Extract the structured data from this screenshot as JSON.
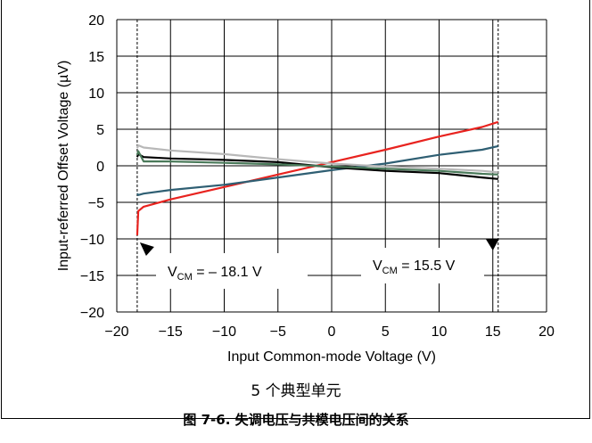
{
  "figure": {
    "note": "5 个典型单元",
    "caption": "图 7-6. 失调电压与共模电压间的关系"
  },
  "chart_data": {
    "type": "line",
    "xlabel": "Input Common-mode Voltage (V)",
    "ylabel": "Input-referred Offset Voltage (µV)",
    "xlim": [
      -20,
      20
    ],
    "ylim": [
      -20,
      20
    ],
    "xticks": [
      -20,
      -15,
      -10,
      -5,
      0,
      5,
      10,
      15,
      20
    ],
    "yticks": [
      20,
      15,
      10,
      5,
      0,
      -5,
      -10,
      -15,
      -20
    ],
    "xtick_labels": [
      "−20",
      "−15",
      "−10",
      "−5",
      "0",
      "5",
      "10",
      "15",
      "20"
    ],
    "ytick_labels": [
      "20",
      "15",
      "10",
      "5",
      "0",
      "−5",
      "−10",
      "−15",
      "−20"
    ],
    "grid": true,
    "series": [
      {
        "color": "#e8231f",
        "x": [
          -18.1,
          -18,
          -17.5,
          -15,
          -10,
          -5,
          0,
          5,
          10,
          14,
          15.5
        ],
        "y": [
          -9.5,
          -6.2,
          -5.6,
          -4.6,
          -2.9,
          -1.2,
          0.5,
          2.2,
          4.0,
          5.3,
          6.0
        ]
      },
      {
        "color": "#2f5f73",
        "x": [
          -18.1,
          -18,
          -17.5,
          -15,
          -10,
          -5,
          0,
          5,
          10,
          14,
          15.5
        ],
        "y": [
          -3.8,
          -4.0,
          -3.8,
          -3.3,
          -2.6,
          -1.6,
          -0.6,
          0.3,
          1.5,
          2.2,
          2.7
        ]
      },
      {
        "color": "#000000",
        "x": [
          -18.1,
          -18,
          -17.5,
          -15,
          -10,
          -5,
          0,
          5,
          10,
          14,
          15.5
        ],
        "y": [
          1.2,
          1.6,
          1.2,
          1.0,
          0.8,
          0.5,
          -0.2,
          -0.7,
          -1.0,
          -1.6,
          -1.8
        ]
      },
      {
        "color": "#b8b8b8",
        "x": [
          -18.1,
          -18,
          -17.5,
          -15,
          -10,
          -5,
          0,
          5,
          10,
          14,
          15.5
        ],
        "y": [
          2.4,
          2.8,
          2.5,
          2.1,
          1.6,
          0.9,
          0.3,
          -0.1,
          -0.4,
          -0.7,
          -0.9
        ]
      },
      {
        "color": "#4a7a5a",
        "x": [
          -18.1,
          -18,
          -17.5,
          -15,
          -10,
          -5,
          0,
          5,
          10,
          14,
          15.5
        ],
        "y": [
          1.5,
          2.0,
          0.6,
          0.6,
          0.4,
          0.2,
          -0.1,
          -0.4,
          -0.7,
          -1.1,
          -1.2
        ]
      }
    ],
    "annotations": [
      {
        "id": "left",
        "x": -18.1,
        "label_main": "V",
        "label_sub": "CM",
        "label_rest": " = – 18.1 V"
      },
      {
        "id": "right",
        "x": 15.5,
        "label_main": "V",
        "label_sub": "CM",
        "label_rest": " = 15.5 V"
      }
    ]
  }
}
